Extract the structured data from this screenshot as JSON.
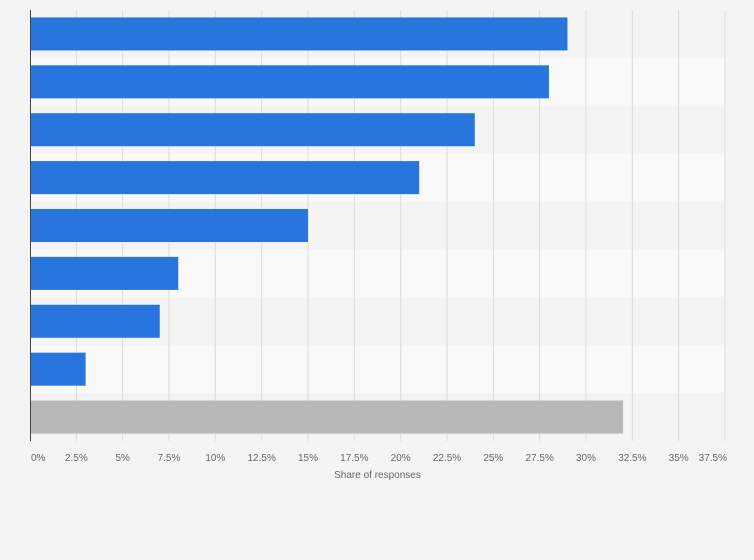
{
  "chart_data": {
    "type": "bar",
    "orientation": "horizontal",
    "title": "",
    "xlabel": "Share of responses",
    "ylabel": "",
    "xlim": [
      0,
      37.5
    ],
    "tick_labels": [
      "0%",
      "2.5%",
      "5%",
      "7.5%",
      "10%",
      "12.5%",
      "15%",
      "17.5%",
      "20%",
      "22.5%",
      "25%",
      "27.5%",
      "30%",
      "32.5%",
      "35%",
      "37.5%"
    ],
    "tick_values": [
      0,
      2.5,
      5,
      7.5,
      10,
      12.5,
      15,
      17.5,
      20,
      22.5,
      25,
      27.5,
      30,
      32.5,
      35,
      37.5
    ],
    "values": [
      29,
      28,
      24,
      21,
      15,
      8,
      7,
      3,
      32
    ],
    "categories_visible": false,
    "grid": true,
    "colors": {
      "bar": "#2876dd",
      "highlight_bar": "#b7b7b7",
      "band_dark": "#f4f4f4",
      "band_light": "#f9f9f9",
      "grid": "#dcdcdc",
      "axis": "#444444"
    }
  }
}
